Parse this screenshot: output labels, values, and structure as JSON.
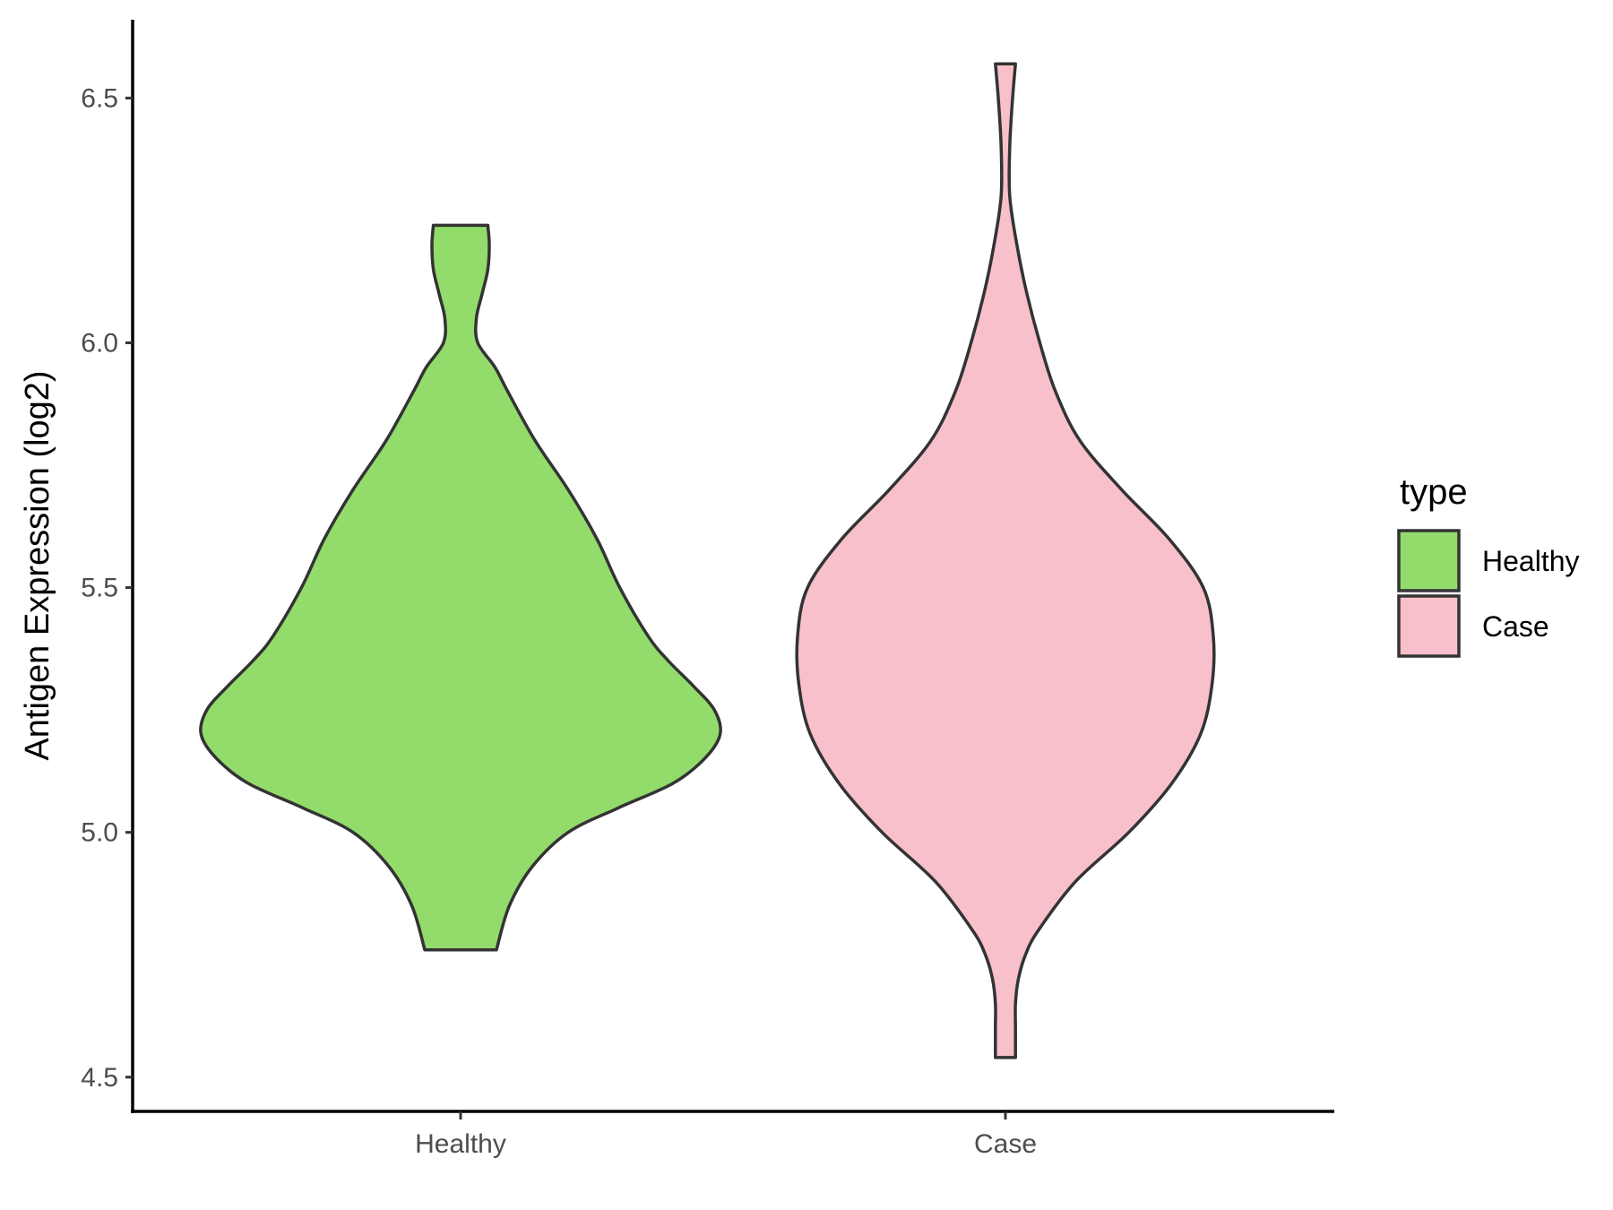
{
  "chart_data": {
    "type": "violin",
    "title": "",
    "xlabel": "",
    "ylabel": "Antigen Expression (log2)",
    "ylim": [
      4.43,
      6.66
    ],
    "yticks": [
      4.5,
      5.0,
      5.5,
      6.0,
      6.5
    ],
    "ytick_labels": [
      "4.5",
      "5.0",
      "5.5",
      "6.0",
      "6.5"
    ],
    "categories": [
      "Healthy",
      "Case"
    ],
    "grid": false,
    "legend": {
      "title": "type",
      "position": "right",
      "entries": [
        "Healthy",
        "Case"
      ]
    },
    "series": [
      {
        "name": "Healthy",
        "color": "#93dc6c",
        "min": 4.76,
        "max": 6.24,
        "density": [
          [
            4.76,
            0.125
          ],
          [
            4.85,
            0.17
          ],
          [
            4.93,
            0.25
          ],
          [
            5.0,
            0.375
          ],
          [
            5.05,
            0.55
          ],
          [
            5.1,
            0.74
          ],
          [
            5.15,
            0.85
          ],
          [
            5.2,
            0.905
          ],
          [
            5.25,
            0.885
          ],
          [
            5.3,
            0.81
          ],
          [
            5.35,
            0.725
          ],
          [
            5.4,
            0.655
          ],
          [
            5.5,
            0.555
          ],
          [
            5.6,
            0.475
          ],
          [
            5.7,
            0.375
          ],
          [
            5.8,
            0.26
          ],
          [
            5.9,
            0.165
          ],
          [
            5.95,
            0.12
          ],
          [
            6.0,
            0.06
          ],
          [
            6.05,
            0.055
          ],
          [
            6.1,
            0.075
          ],
          [
            6.15,
            0.095
          ],
          [
            6.2,
            0.1
          ],
          [
            6.24,
            0.095
          ]
        ]
      },
      {
        "name": "Case",
        "color": "#f7c0cb",
        "min": 4.54,
        "max": 6.57,
        "density": [
          [
            4.54,
            0.035
          ],
          [
            4.6,
            0.035
          ],
          [
            4.65,
            0.035
          ],
          [
            4.7,
            0.045
          ],
          [
            4.75,
            0.07
          ],
          [
            4.8,
            0.115
          ],
          [
            4.9,
            0.245
          ],
          [
            5.0,
            0.43
          ],
          [
            5.1,
            0.58
          ],
          [
            5.2,
            0.68
          ],
          [
            5.3,
            0.72
          ],
          [
            5.4,
            0.725
          ],
          [
            5.5,
            0.69
          ],
          [
            5.6,
            0.57
          ],
          [
            5.7,
            0.405
          ],
          [
            5.8,
            0.26
          ],
          [
            5.9,
            0.175
          ],
          [
            6.0,
            0.12
          ],
          [
            6.1,
            0.075
          ],
          [
            6.2,
            0.04
          ],
          [
            6.3,
            0.015
          ],
          [
            6.4,
            0.015
          ],
          [
            6.5,
            0.025
          ],
          [
            6.57,
            0.035
          ]
        ]
      }
    ]
  }
}
